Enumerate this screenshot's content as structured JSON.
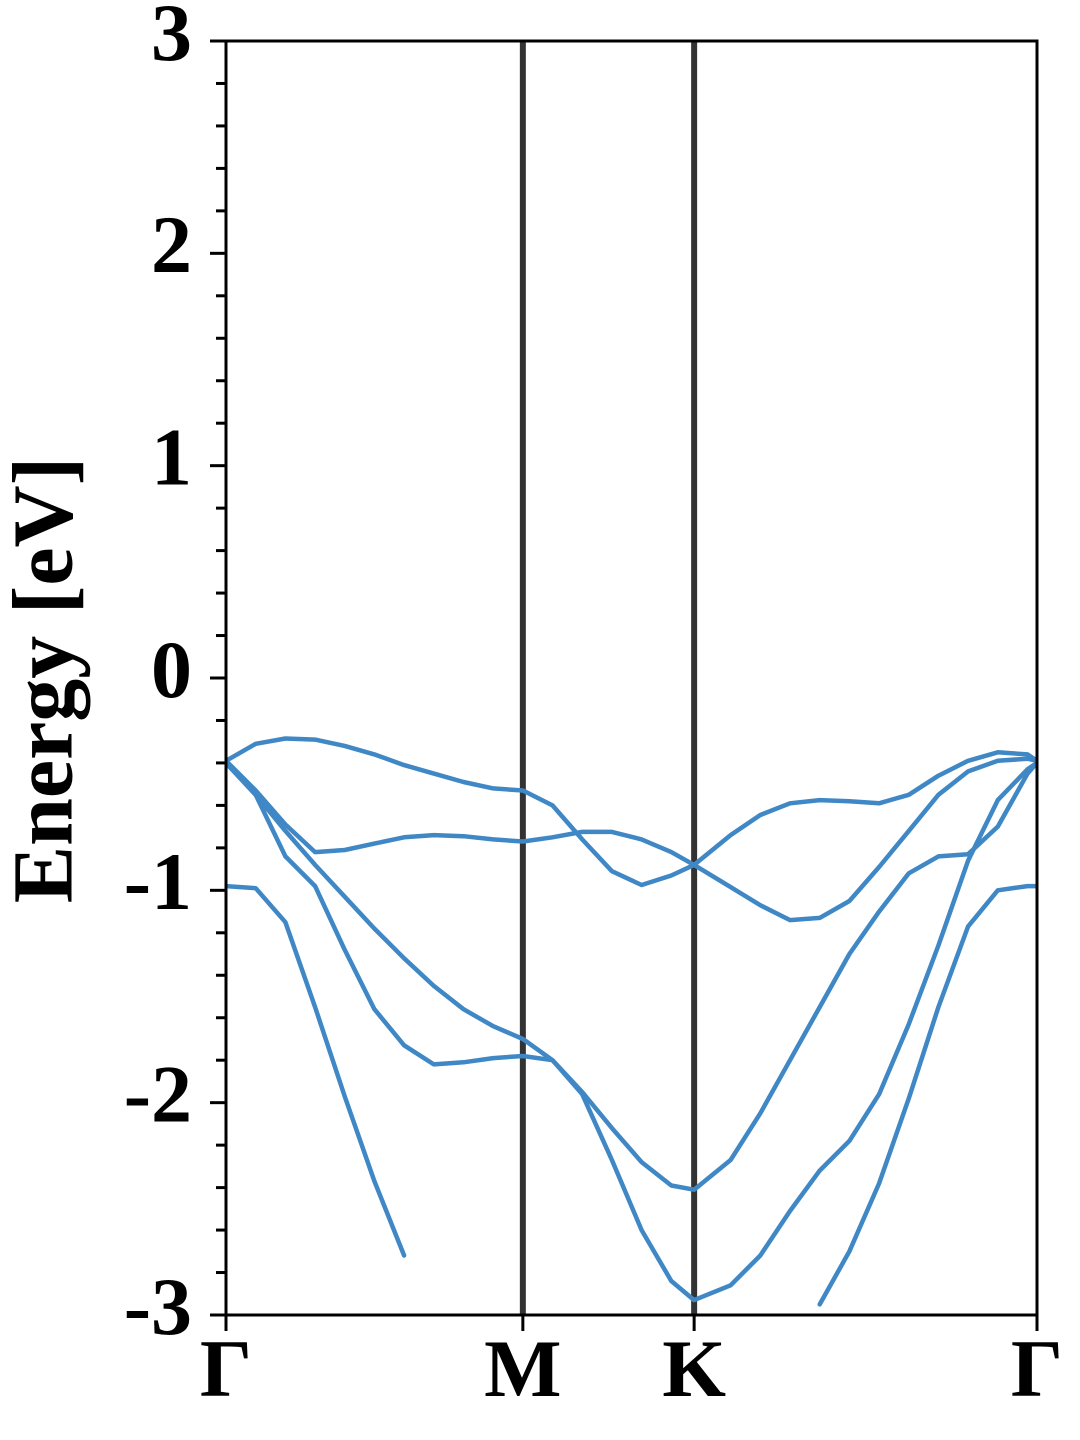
{
  "chart_data": {
    "type": "line",
    "ylabel": "Energy [eV]",
    "x": [
      0,
      0.1,
      0.2,
      0.3,
      0.4,
      0.5,
      0.6,
      0.7,
      0.8,
      0.9,
      1.0,
      1.1,
      1.2,
      1.3,
      1.4,
      1.5,
      1.577,
      1.7,
      1.8,
      1.9,
      2.0,
      2.1,
      2.2,
      2.3,
      2.4,
      2.5,
      2.6,
      2.7,
      2.732
    ],
    "xlim": [
      0,
      2.732
    ],
    "xticks": [
      {
        "value": 0,
        "label": "Γ"
      },
      {
        "value": 1.0,
        "label": "M"
      },
      {
        "value": 1.577,
        "label": "K"
      },
      {
        "value": 2.732,
        "label": "Γ"
      }
    ],
    "vlines": [
      1.0,
      1.577
    ],
    "vline_color": "#333333",
    "ylim": [
      -3,
      3
    ],
    "yticks": [
      -3,
      -2,
      -1,
      0,
      1,
      2,
      3
    ],
    "yminorticks": [
      -2.8,
      -2.6,
      -2.4,
      -2.2,
      -1.8,
      -1.6,
      -1.4,
      -1.2,
      -0.8,
      -0.6,
      -0.4,
      -0.2,
      0.2,
      0.4,
      0.6,
      0.8,
      1.2,
      1.4,
      1.6,
      1.8,
      2.2,
      2.4,
      2.6,
      2.8
    ],
    "series": [
      {
        "color": "#3f88c5",
        "values": [
          -0.39,
          -0.31,
          -0.285,
          -0.29,
          -0.32,
          -0.36,
          -0.41,
          -0.45,
          -0.49,
          -0.52,
          -0.53,
          -0.6,
          -0.76,
          -0.91,
          -0.975,
          -0.93,
          -0.88,
          -0.74,
          -0.645,
          -0.59,
          -0.575,
          -0.58,
          -0.59,
          -0.55,
          -0.46,
          -0.39,
          -0.35,
          -0.36,
          -0.39
        ]
      },
      {
        "color": "#3f88c5",
        "values": [
          -0.39,
          -0.53,
          -0.69,
          -0.82,
          -0.81,
          -0.78,
          -0.75,
          -0.74,
          -0.745,
          -0.76,
          -0.77,
          -0.75,
          -0.725,
          -0.725,
          -0.76,
          -0.82,
          -0.88,
          -0.985,
          -1.07,
          -1.14,
          -1.13,
          -1.05,
          -0.89,
          -0.72,
          -0.55,
          -0.44,
          -0.39,
          -0.38,
          -0.39
        ]
      },
      {
        "color": "#3f88c5",
        "values": [
          -0.4,
          -0.55,
          -0.84,
          -0.98,
          -1.28,
          -1.56,
          -1.73,
          -1.82,
          -1.81,
          -1.79,
          -1.78,
          -1.8,
          -1.96,
          -2.27,
          -2.6,
          -2.84,
          -2.93,
          -2.86,
          -2.72,
          -2.51,
          -2.32,
          -2.18,
          -1.96,
          -1.63,
          -1.26,
          -0.86,
          -0.575,
          -0.43,
          -0.4
        ]
      },
      {
        "color": "#3f88c5",
        "values": [
          -0.4,
          -0.55,
          -0.72,
          -0.88,
          -1.03,
          -1.18,
          -1.32,
          -1.45,
          -1.56,
          -1.64,
          -1.7,
          -1.8,
          -1.95,
          -2.12,
          -2.28,
          -2.39,
          -2.41,
          -2.27,
          -2.05,
          -1.8,
          -1.55,
          -1.3,
          -1.1,
          -0.92,
          -0.84,
          -0.83,
          -0.7,
          -0.45,
          -0.4
        ]
      },
      {
        "color": "#3f88c5",
        "values": [
          -0.98,
          -0.99,
          -1.15,
          -1.55,
          -1.97,
          -2.37,
          -2.72,
          null,
          null,
          null,
          null,
          null,
          null,
          null,
          null,
          null,
          null,
          null,
          null,
          null,
          -2.95,
          -2.7,
          -2.38,
          -1.98,
          -1.55,
          -1.17,
          -1.0,
          -0.98,
          -0.98
        ]
      }
    ]
  }
}
